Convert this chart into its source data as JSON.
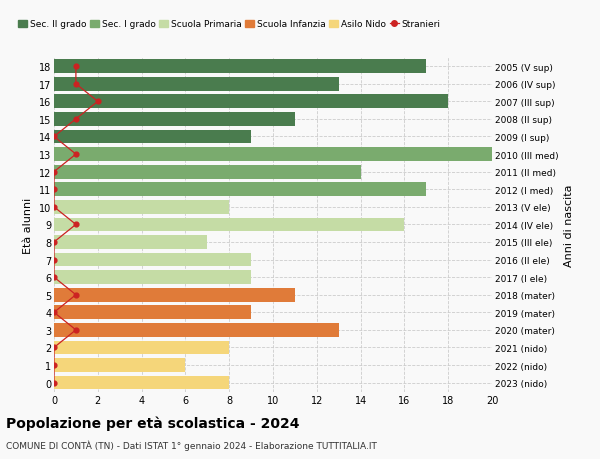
{
  "ages": [
    18,
    17,
    16,
    15,
    14,
    13,
    12,
    11,
    10,
    9,
    8,
    7,
    6,
    5,
    4,
    3,
    2,
    1,
    0
  ],
  "years": [
    "2005 (V sup)",
    "2006 (IV sup)",
    "2007 (III sup)",
    "2008 (II sup)",
    "2009 (I sup)",
    "2010 (III med)",
    "2011 (II med)",
    "2012 (I med)",
    "2013 (V ele)",
    "2014 (IV ele)",
    "2015 (III ele)",
    "2016 (II ele)",
    "2017 (I ele)",
    "2018 (mater)",
    "2019 (mater)",
    "2020 (mater)",
    "2021 (nido)",
    "2022 (nido)",
    "2023 (nido)"
  ],
  "values": [
    17,
    13,
    18,
    11,
    9,
    20,
    14,
    17,
    8,
    16,
    7,
    9,
    9,
    11,
    9,
    13,
    8,
    6,
    8
  ],
  "stranieri": [
    1,
    1,
    2,
    1,
    0,
    1,
    0,
    0,
    0,
    1,
    0,
    0,
    0,
    1,
    0,
    1,
    0,
    0,
    0
  ],
  "categories": {
    "sec2": [
      18,
      17,
      16,
      15,
      14
    ],
    "sec1": [
      13,
      12,
      11
    ],
    "primaria": [
      10,
      9,
      8,
      7,
      6
    ],
    "infanzia": [
      5,
      4,
      3
    ],
    "nido": [
      2,
      1,
      0
    ]
  },
  "colors": {
    "sec2": "#4a7c4e",
    "sec1": "#7aab6e",
    "primaria": "#c5dca5",
    "infanzia": "#e07b39",
    "nido": "#f5d67a",
    "stranieri": "#cc2222"
  },
  "legend_labels": [
    "Sec. II grado",
    "Sec. I grado",
    "Scuola Primaria",
    "Scuola Infanzia",
    "Asilo Nido",
    "Stranieri"
  ],
  "title": "Popolazione per età scolastica - 2024",
  "subtitle": "COMUNE DI CONTÀ (TN) - Dati ISTAT 1° gennaio 2024 - Elaborazione TUTTITALIA.IT",
  "ylabel": "Età alunni",
  "ylabel_right": "Anni di nascita",
  "xlim": [
    0,
    20
  ],
  "xticks": [
    0,
    2,
    4,
    6,
    8,
    10,
    12,
    14,
    16,
    18,
    20
  ],
  "background_color": "#f9f9f9",
  "grid_color": "#cccccc"
}
